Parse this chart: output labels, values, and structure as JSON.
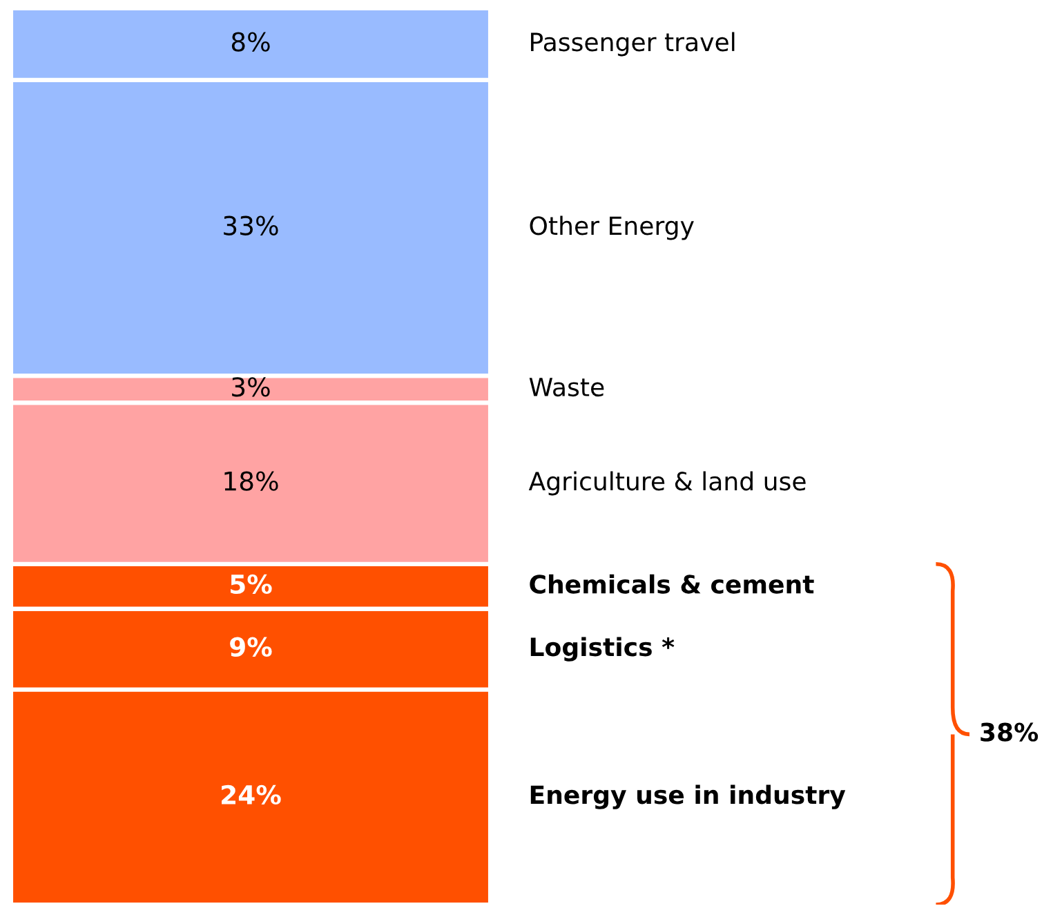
{
  "chart_data": {
    "type": "bar",
    "stacked": true,
    "categories": [
      null
    ],
    "tick_labels": false,
    "series": [
      {
        "name": "Energy use in industry",
        "color": "#ff5000",
        "values": [
          24
        ],
        "value_labels": [
          "24%"
        ]
      },
      {
        "name": "Logistics *",
        "color": "#ff5000",
        "values": [
          9
        ],
        "value_labels": [
          "9%"
        ]
      },
      {
        "name": "Chemicals & cement",
        "color": "#ff5000",
        "values": [
          5
        ],
        "value_labels": [
          "5%"
        ]
      },
      {
        "name": "Agriculture & land use",
        "color": "#ffa3a3",
        "values": [
          18
        ],
        "value_labels": [
          "18%"
        ]
      },
      {
        "name": "Waste",
        "color": "#ffa3a3",
        "values": [
          3
        ],
        "value_labels": [
          "3%"
        ]
      },
      {
        "name": "Other Energy",
        "color": "#99bbff",
        "values": [
          33
        ],
        "value_labels": [
          "33%"
        ]
      },
      {
        "name": "Passenger travel",
        "color": "#99bbff",
        "values": [
          8
        ],
        "value_labels": [
          "8%"
        ]
      }
    ],
    "annotations": [
      "38%"
    ]
  }
}
